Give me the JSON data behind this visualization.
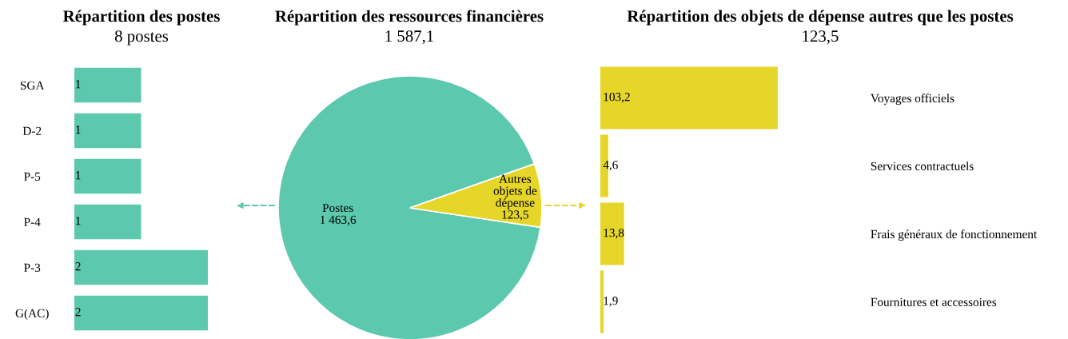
{
  "chart_data": [
    {
      "type": "bar",
      "orientation": "horizontal",
      "title": "Répartition des postes",
      "subtitle": "8 postes",
      "categories": [
        "SGA",
        "D-2",
        "P-5",
        "P-4",
        "P-3",
        "G(AC)"
      ],
      "values": [
        1,
        1,
        1,
        1,
        2,
        2
      ],
      "color": "#5cc8ae",
      "data_labels": true
    },
    {
      "type": "pie",
      "title": "Répartition des ressources financières",
      "subtitle": "1 587,1",
      "categories": [
        "Postes",
        "Autres\nobjets de\ndépense"
      ],
      "values": [
        1463.6,
        123.5
      ],
      "colors": [
        "#5cc8ae",
        "#e6d62a"
      ],
      "value_labels": [
        "1 463,6",
        "123,5"
      ]
    },
    {
      "type": "bar",
      "orientation": "horizontal",
      "title": "Répartition des objets de dépense autres que les postes",
      "subtitle": "123,5",
      "categories": [
        "Voyages officiels",
        "Services contractuels",
        "Frais généraux de fonctionnement",
        "Fournitures et accessoires"
      ],
      "values": [
        103.2,
        4.6,
        13.8,
        1.9
      ],
      "color": "#e6d62a",
      "value_labels": [
        "103,2",
        "4,6",
        "13,8",
        "1,9"
      ]
    }
  ]
}
